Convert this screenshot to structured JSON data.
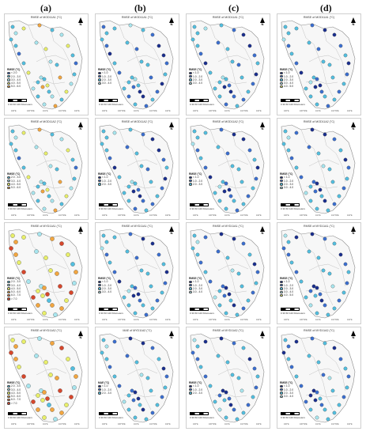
{
  "column_labels": [
    "(a)",
    "(b)",
    "(c)",
    "(d)"
  ],
  "colors": {
    "c1": "#1a2f8f",
    "c2": "#3b6fd0",
    "c3": "#52bfe0",
    "c4": "#a8e6ef",
    "c5": "#e8ef6a",
    "c6": "#f2a640",
    "c7": "#d6472c"
  },
  "north_label": "N",
  "scale_text": "0 30 60      120 Kilometers",
  "x_ticks": [
    "100°E",
    "100°30'E",
    "101°E",
    "101°30'E",
    "102°E"
  ],
  "panels": [
    {
      "title": "RMSE of MOD11A1 (°C)",
      "legend_title": "RMSE (°C)",
      "legend": [
        {
          "label": "< 2.0",
          "color": "#3b6fd0"
        },
        {
          "label": "2.0 - 3.0",
          "color": "#52bfe0"
        },
        {
          "label": "3.0 - 4.0",
          "color": "#a8e6ef"
        },
        {
          "label": "4.0 - 5.0",
          "color": "#e8ef6a"
        },
        {
          "label": "5.0 - 6.0",
          "color": "#f2a640"
        }
      ]
    },
    {
      "title": "RMSE of MOD11A1 (°C)",
      "legend_title": "RMSE (°C)",
      "legend": [
        {
          "label": "< 1.0",
          "color": "#1a2f8f"
        },
        {
          "label": "1.0 - 2.0",
          "color": "#3b6fd0"
        },
        {
          "label": "2.0 - 3.0",
          "color": "#52bfe0"
        },
        {
          "label": "3.0 - 4.0",
          "color": "#a8e6ef"
        }
      ]
    },
    {
      "title": "RMSE of MOD11A1 (°C)",
      "legend_title": "RMSE (°C)",
      "legend": [
        {
          "label": "< 1.0",
          "color": "#1a2f8f"
        },
        {
          "label": "1.0 - 2.0",
          "color": "#3b6fd0"
        },
        {
          "label": "2.0 - 3.0",
          "color": "#52bfe0"
        },
        {
          "label": "3.0 - 4.0",
          "color": "#a8e6ef"
        }
      ]
    },
    {
      "title": "RMSE of MOD11A1 (°C)",
      "legend_title": "RMSE (°C)",
      "legend": [
        {
          "label": "< 1.0",
          "color": "#1a2f8f"
        },
        {
          "label": "1.0 - 2.0",
          "color": "#3b6fd0"
        },
        {
          "label": "2.0 - 3.0",
          "color": "#52bfe0"
        },
        {
          "label": "3.0 - 4.0",
          "color": "#a8e6ef"
        },
        {
          "label": "4.0 - 5.0",
          "color": "#e8ef6a"
        }
      ]
    },
    {
      "title": "RMSE of MOD11A2 (°C)",
      "legend_title": "RMSE (°C)",
      "legend": [
        {
          "label": "2.0 - 3.0",
          "color": "#52bfe0"
        },
        {
          "label": "3.0 - 4.0",
          "color": "#a8e6ef"
        },
        {
          "label": "4.0 - 5.0",
          "color": "#e8ef6a"
        },
        {
          "label": "5.0 - 6.0",
          "color": "#f2a640"
        }
      ]
    },
    {
      "title": "RMSE of MOD11A2 (°C)",
      "legend_title": "RMSE (°C)",
      "legend": [
        {
          "label": "< 1.0",
          "color": "#1a2f8f"
        },
        {
          "label": "1.0 - 2.0",
          "color": "#3b6fd0"
        },
        {
          "label": "2.0 - 3.0",
          "color": "#52bfe0"
        }
      ]
    },
    {
      "title": "RMSE of MOD11A2 (°C)",
      "legend_title": "RMSE (°C)",
      "legend": [
        {
          "label": "< 1.0",
          "color": "#1a2f8f"
        },
        {
          "label": "1.0 - 2.0",
          "color": "#3b6fd0"
        },
        {
          "label": "2.0 - 3.0",
          "color": "#52bfe0"
        }
      ]
    },
    {
      "title": "RMSE of MOD11A2 (°C)",
      "legend_title": "RMSE (°C)",
      "legend": [
        {
          "label": "< 1.0",
          "color": "#1a2f8f"
        },
        {
          "label": "1.0 - 2.0",
          "color": "#3b6fd0"
        },
        {
          "label": "2.0 - 3.0",
          "color": "#52bfe0"
        },
        {
          "label": "3.0 - 4.0",
          "color": "#a8e6ef"
        }
      ]
    },
    {
      "title": "RMSE of MYD11A1 (°C)",
      "legend_title": "RMSE (°C)",
      "legend": [
        {
          "label": "2.0 - 3.0",
          "color": "#52bfe0"
        },
        {
          "label": "3.0 - 4.0",
          "color": "#a8e6ef"
        },
        {
          "label": "4.0 - 5.0",
          "color": "#e8ef6a"
        },
        {
          "label": "5.0 - 6.0",
          "color": "#f2a640"
        },
        {
          "label": "6.0 - 7.0",
          "color": "#ee7a3a"
        },
        {
          "label": "> 7.0",
          "color": "#d6472c"
        }
      ]
    },
    {
      "title": "RMSE of MYD11A1 (°C)",
      "legend_title": "RMSE (°C)",
      "legend": [
        {
          "label": "< 1.0",
          "color": "#1a2f8f"
        },
        {
          "label": "1.0 - 2.0",
          "color": "#3b6fd0"
        },
        {
          "label": "2.0 - 3.0",
          "color": "#52bfe0"
        },
        {
          "label": "3.0 - 4.0",
          "color": "#a8e6ef"
        }
      ]
    },
    {
      "title": "RMSE of MYD11A1 (°C)",
      "legend_title": "RMSE (°C)",
      "legend": [
        {
          "label": "< 1.0",
          "color": "#1a2f8f"
        },
        {
          "label": "1.0 - 2.0",
          "color": "#3b6fd0"
        },
        {
          "label": "2.0 - 3.0",
          "color": "#52bfe0"
        },
        {
          "label": "3.0 - 4.0",
          "color": "#a8e6ef"
        }
      ]
    },
    {
      "title": "RMSE of MYD11A1 (°C)",
      "legend_title": "RMSE (°C)",
      "legend": [
        {
          "label": "< 1.0",
          "color": "#1a2f8f"
        },
        {
          "label": "1.0 - 2.0",
          "color": "#3b6fd0"
        },
        {
          "label": "2.0 - 3.0",
          "color": "#52bfe0"
        },
        {
          "label": "3.0 - 4.0",
          "color": "#a8e6ef"
        },
        {
          "label": "4.0 - 5.0",
          "color": "#e8ef6a"
        }
      ]
    },
    {
      "title": "RMSE of MYD11A2 (°C)",
      "legend_title": "RMSE (°C)",
      "legend": [
        {
          "label": "2.0 - 3.0",
          "color": "#52bfe0"
        },
        {
          "label": "3.0 - 4.0",
          "color": "#a8e6ef"
        },
        {
          "label": "4.0 - 5.0",
          "color": "#e8ef6a"
        },
        {
          "label": "5.0 - 6.0",
          "color": "#f2a640"
        },
        {
          "label": "6.0 - 7.0",
          "color": "#ee7a3a"
        },
        {
          "label": "> 7.0",
          "color": "#d6472c"
        }
      ]
    },
    {
      "title": "MAE of MYD11A2 (°C)",
      "legend_title": "MAE (°C)",
      "legend": [
        {
          "label": "< 1.0",
          "color": "#1a2f8f"
        },
        {
          "label": "1.0 - 2.0",
          "color": "#3b6fd0"
        },
        {
          "label": "2.0 - 3.0",
          "color": "#52bfe0"
        }
      ]
    },
    {
      "title": "RMSE of MYD11A2 (°C)",
      "legend_title": "RMSE (°C)",
      "legend": [
        {
          "label": "< 1.0",
          "color": "#1a2f8f"
        },
        {
          "label": "1.0 - 2.0",
          "color": "#3b6fd0"
        },
        {
          "label": "2.0 - 3.0",
          "color": "#52bfe0"
        }
      ]
    },
    {
      "title": "RMSE of MYD11A2 (°C)",
      "legend_title": "RMSE (°C)",
      "legend": [
        {
          "label": "< 1.0",
          "color": "#1a2f8f"
        },
        {
          "label": "1.0 - 2.0",
          "color": "#3b6fd0"
        },
        {
          "label": "2.0 - 3.0",
          "color": "#52bfe0"
        },
        {
          "label": "3.0 - 4.0",
          "color": "#a8e6ef"
        }
      ]
    }
  ]
}
